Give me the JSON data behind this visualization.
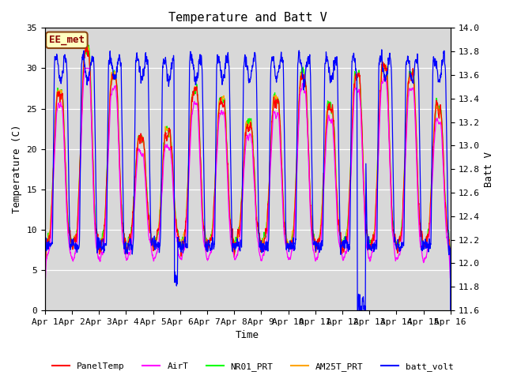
{
  "title": "Temperature and Batt V",
  "xlabel": "Time",
  "ylabel_left": "Temperature (C)",
  "ylabel_right": "Batt V",
  "annotation": "EE_met",
  "ylim_left": [
    0,
    35
  ],
  "ylim_right": [
    11.6,
    14.0
  ],
  "yticks_left": [
    0,
    5,
    10,
    15,
    20,
    25,
    30,
    35
  ],
  "yticks_right": [
    11.6,
    11.8,
    12.0,
    12.2,
    12.4,
    12.6,
    12.8,
    13.0,
    13.2,
    13.4,
    13.6,
    13.8,
    14.0
  ],
  "x_tick_labels": [
    "Apr 1",
    "Apr 2",
    "Apr 3",
    "Apr 4",
    "Apr 5",
    "Apr 6",
    "Apr 7",
    "Apr 8",
    "Apr 9",
    "Apr 10",
    "Apr 11",
    "Apr 12",
    "Apr 13",
    "Apr 14",
    "Apr 15",
    "Apr 16"
  ],
  "series_colors": {
    "PanelTemp": "#FF0000",
    "AirT": "#FF00FF",
    "NR01_PRT": "#00FF00",
    "AM25T_PRT": "#FFA500",
    "batt_volt": "#0000FF"
  },
  "background_color": "#ffffff",
  "plot_bg_color": "#d8d8d8",
  "grid_color": "#ffffff",
  "num_days": 15,
  "pts_per_day": 144,
  "font_family": "monospace"
}
